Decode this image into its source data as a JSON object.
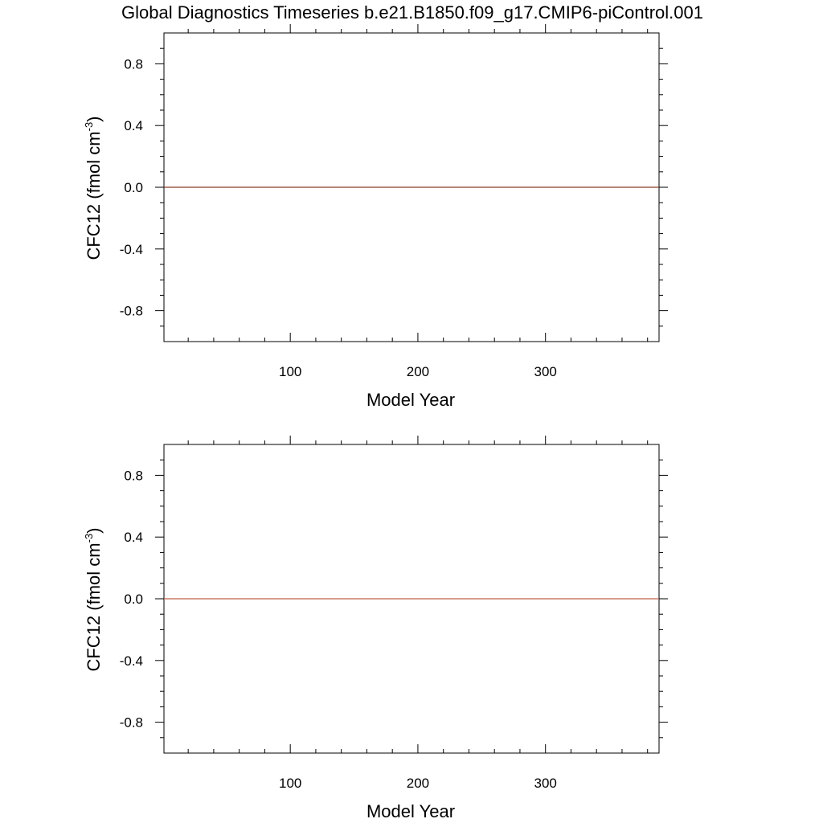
{
  "figure": {
    "title": "Global Diagnostics Timeseries b.e21.B1850.f09_g17.CMIP6-piControl.001"
  },
  "chart_data": [
    {
      "type": "line",
      "xlabel": "Model Year",
      "ylabel": {
        "main": "CFC12 (fmol cm",
        "superscript": "-3",
        "close": ")"
      },
      "xlim": [
        1,
        389
      ],
      "ylim": [
        -1,
        1
      ],
      "x_ticks": [
        100,
        200,
        300
      ],
      "x_tick_labels": [
        "100",
        "200",
        "300"
      ],
      "x_minor_step": 20,
      "y_ticks": [
        -0.8,
        -0.4,
        0.0,
        0.4,
        0.8
      ],
      "y_tick_labels": [
        "-0.8",
        "-0.4",
        "0.0",
        "0.4",
        "0.8"
      ],
      "y_minor_step": 0.1,
      "grid": false,
      "series": [
        {
          "x": [
            1,
            389
          ],
          "y": [
            0,
            0
          ],
          "color": "#8b3a26"
        }
      ]
    },
    {
      "type": "line",
      "xlabel": "Model Year",
      "ylabel": {
        "main": "CFC12 (fmol cm",
        "superscript": "-3",
        "close": ")"
      },
      "xlim": [
        1,
        389
      ],
      "ylim": [
        -1,
        1
      ],
      "x_ticks": [
        100,
        200,
        300
      ],
      "x_tick_labels": [
        "100",
        "200",
        "300"
      ],
      "x_minor_step": 20,
      "y_ticks": [
        -0.8,
        -0.4,
        0.0,
        0.4,
        0.8
      ],
      "y_tick_labels": [
        "-0.8",
        "-0.4",
        "0.0",
        "0.4",
        "0.8"
      ],
      "y_minor_step": 0.1,
      "grid": false,
      "series": [
        {
          "x": [
            1,
            389
          ],
          "y": [
            0,
            0
          ],
          "color": "#c0604a"
        }
      ]
    }
  ]
}
